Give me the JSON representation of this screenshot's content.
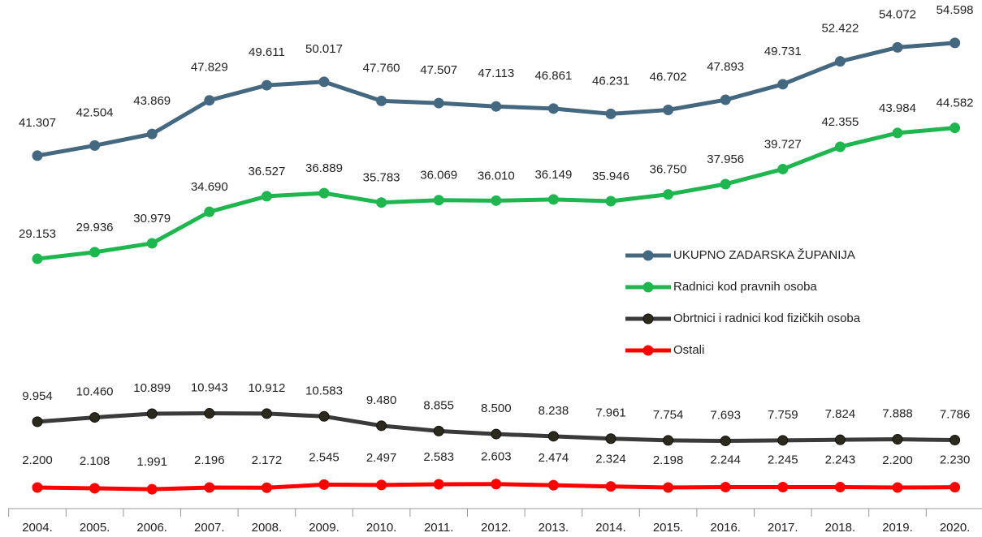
{
  "chart_data": {
    "type": "line",
    "categories": [
      "2004.",
      "2005.",
      "2006.",
      "2007.",
      "2008.",
      "2009.",
      "2010.",
      "2011.",
      "2012.",
      "2013.",
      "2014.",
      "2015.",
      "2016.",
      "2017.",
      "2018.",
      "2019.",
      "2020."
    ],
    "series": [
      {
        "name": "UKUPNO ZADARSKA ŽUPANIJA",
        "color": "#44687f",
        "values": [
          41307,
          42504,
          43869,
          47829,
          49611,
          50017,
          47760,
          47507,
          47113,
          46861,
          46231,
          46702,
          47893,
          49731,
          52422,
          54072,
          54598
        ],
        "value_labels": [
          "41.307",
          "42.504",
          "43.869",
          "47.829",
          "49.611",
          "50.017",
          "47.760",
          "47.507",
          "47.113",
          "46.861",
          "46.231",
          "46.702",
          "47.893",
          "49.731",
          "52.422",
          "54.072",
          "54.598"
        ]
      },
      {
        "name": "Radnici kod pravnih osoba",
        "color": "#1fb650",
        "values": [
          29153,
          29936,
          30979,
          34690,
          36527,
          36889,
          35783,
          36069,
          36010,
          36149,
          35946,
          36750,
          37956,
          39727,
          42355,
          43984,
          44582
        ],
        "value_labels": [
          "29.153",
          "29.936",
          "30.979",
          "34.690",
          "36.527",
          "36.889",
          "35.783",
          "36.069",
          "36.010",
          "36.149",
          "35.946",
          "36.750",
          "37.956",
          "39.727",
          "42.355",
          "43.984",
          "44.582"
        ]
      },
      {
        "name": "Obrtnici i radnici kod fizičkih osoba",
        "color": "#3a3a3a",
        "values": [
          9954,
          10460,
          10899,
          10943,
          10912,
          10583,
          9480,
          8855,
          8500,
          8238,
          7961,
          7754,
          7693,
          7759,
          7824,
          7888,
          7786
        ],
        "value_labels": [
          "9.954",
          "10.460",
          "10.899",
          "10.943",
          "10.912",
          "10.583",
          "9.480",
          "8.855",
          "8.500",
          "8.238",
          "7.961",
          "7.754",
          "7.693",
          "7.759",
          "7.824",
          "7.888",
          "7.786"
        ]
      },
      {
        "name": "Ostali",
        "color": "#ff0000",
        "values": [
          2200,
          2108,
          1991,
          2196,
          2172,
          2545,
          2497,
          2583,
          2603,
          2474,
          2324,
          2198,
          2244,
          2245,
          2243,
          2200,
          2230
        ],
        "value_labels": [
          "2.200",
          "2.108",
          "1.991",
          "2.196",
          "2.172",
          "2.545",
          "2.497",
          "2.583",
          "2.603",
          "2.474",
          "2.324",
          "2.198",
          "2.244",
          "2.245",
          "2.243",
          "2.200",
          "2.230"
        ]
      }
    ]
  }
}
